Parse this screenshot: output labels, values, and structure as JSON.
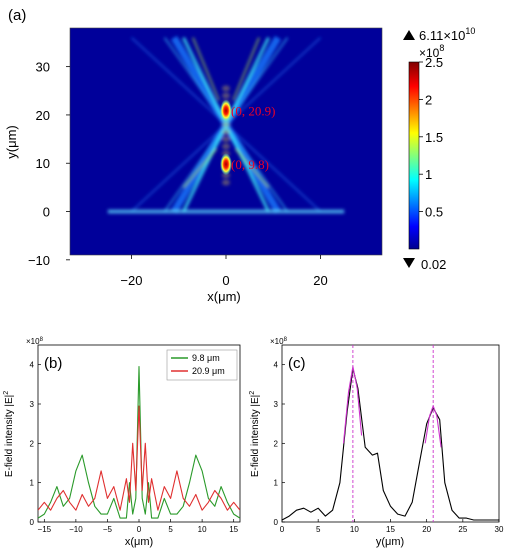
{
  "chart_data": [
    {
      "panel": "(a)",
      "type": "heatmap",
      "xlabel": "x(μm)",
      "ylabel": "y(μm)",
      "xlim": [
        -33,
        33
      ],
      "ylim": [
        -9,
        38
      ],
      "xticks": [
        -20,
        0,
        20
      ],
      "yticks": [
        -10,
        0,
        10,
        20,
        30
      ],
      "annotations": [
        {
          "text": "(0, 20.9)",
          "x": 0,
          "y": 20.9
        },
        {
          "text": "(0, 9.8)",
          "x": 0,
          "y": 9.8
        }
      ],
      "colorbar": {
        "max_label": "6.11×10",
        "max_exponent": "10",
        "scale_label": "×10",
        "scale_exponent": "8",
        "min_label": "0.02",
        "range": [
          0,
          2.5
        ],
        "ticks": [
          0.5,
          1,
          1.5,
          2,
          2.5
        ]
      }
    },
    {
      "panel": "(b)",
      "type": "line",
      "xlabel": "x(μm)",
      "ylabel": "E-field intensity |E|",
      "ylabel_sup": "2",
      "multiplier": "×10",
      "multiplier_exp": "8",
      "xlim": [
        -16,
        16
      ],
      "ylim": [
        0,
        4.5
      ],
      "xticks": [
        -15,
        -10,
        -5,
        0,
        5,
        10,
        15
      ],
      "yticks": [
        0,
        1,
        2,
        3,
        4
      ],
      "series": [
        {
          "name": "9.8 μm",
          "color": "#2a9a2a",
          "x": [
            -16,
            -15,
            -14,
            -13,
            -12,
            -11,
            -10,
            -9,
            -8,
            -7,
            -6,
            -5,
            -4,
            -3,
            -2,
            -1.5,
            -1,
            -0.5,
            0,
            0.5,
            1,
            1.5,
            2,
            3,
            4,
            5,
            6,
            7,
            8,
            9,
            10,
            11,
            12,
            13,
            14,
            15,
            16
          ],
          "y": [
            0.1,
            0.2,
            0.5,
            0.9,
            0.4,
            0.6,
            1.3,
            1.7,
            1.0,
            0.4,
            0.2,
            0.2,
            0.6,
            0.1,
            0.1,
            1.0,
            0.2,
            0.6,
            3.95,
            0.6,
            0.2,
            1.0,
            0.1,
            0.1,
            0.6,
            0.2,
            0.2,
            0.4,
            1.0,
            1.7,
            1.3,
            0.6,
            0.4,
            0.9,
            0.5,
            0.2,
            0.1
          ]
        },
        {
          "name": "20.9 μm",
          "color": "#e03030",
          "x": [
            -16,
            -15,
            -14,
            -13,
            -12,
            -11,
            -10,
            -9,
            -8,
            -7,
            -6,
            -5,
            -4,
            -3,
            -2,
            -1.5,
            -1,
            -0.5,
            0,
            0.5,
            1,
            1.5,
            2,
            3,
            4,
            5,
            6,
            7,
            8,
            9,
            10,
            11,
            12,
            13,
            14,
            15,
            16
          ],
          "y": [
            0.3,
            0.5,
            0.3,
            0.6,
            0.8,
            0.5,
            0.3,
            0.7,
            0.4,
            0.6,
            1.3,
            0.6,
            0.9,
            0.3,
            1.1,
            0.5,
            2.0,
            0.8,
            2.95,
            0.8,
            2.0,
            0.5,
            1.1,
            0.3,
            0.9,
            0.6,
            1.3,
            0.6,
            0.4,
            0.7,
            0.3,
            0.5,
            0.8,
            0.6,
            0.3,
            0.5,
            0.3
          ]
        }
      ]
    },
    {
      "panel": "(c)",
      "type": "line",
      "xlabel": "y(μm)",
      "ylabel": "E-field intensity |E|",
      "ylabel_sup": "2",
      "multiplier": "×10",
      "multiplier_exp": "8",
      "xlim": [
        0,
        30
      ],
      "ylim": [
        0,
        4.5
      ],
      "xticks": [
        0,
        5,
        10,
        15,
        20,
        25,
        30
      ],
      "yticks": [
        0,
        1,
        2,
        3,
        4
      ],
      "markers": [
        9.8,
        20.9
      ],
      "series": [
        {
          "color": "#000000",
          "x": [
            0,
            1,
            2,
            3,
            4,
            5,
            6,
            7,
            8,
            9,
            9.8,
            10.5,
            11.5,
            12.5,
            13.2,
            14,
            15,
            16,
            17,
            18,
            19,
            20,
            20.9,
            21.8,
            22.5,
            23.5,
            24.5,
            25.5,
            26.5,
            28,
            30
          ],
          "y": [
            0.05,
            0.15,
            0.3,
            0.35,
            0.25,
            0.35,
            0.15,
            0.3,
            1.0,
            2.8,
            3.9,
            3.4,
            1.9,
            1.7,
            1.75,
            0.8,
            0.4,
            0.2,
            0.15,
            0.5,
            1.5,
            2.5,
            2.9,
            2.6,
            1.0,
            0.3,
            0.1,
            0.1,
            0.05,
            0.05,
            0.05
          ]
        },
        {
          "color": "#cc33cc",
          "x": [
            8.5,
            9.2,
            9.8,
            10.4,
            11
          ],
          "y": [
            2.0,
            3.3,
            3.95,
            3.4,
            2.2
          ]
        },
        {
          "color": "#cc33cc",
          "x": [
            19.8,
            20.4,
            20.9,
            21.4,
            22
          ],
          "y": [
            2.0,
            2.7,
            2.95,
            2.7,
            1.9
          ]
        }
      ]
    }
  ]
}
